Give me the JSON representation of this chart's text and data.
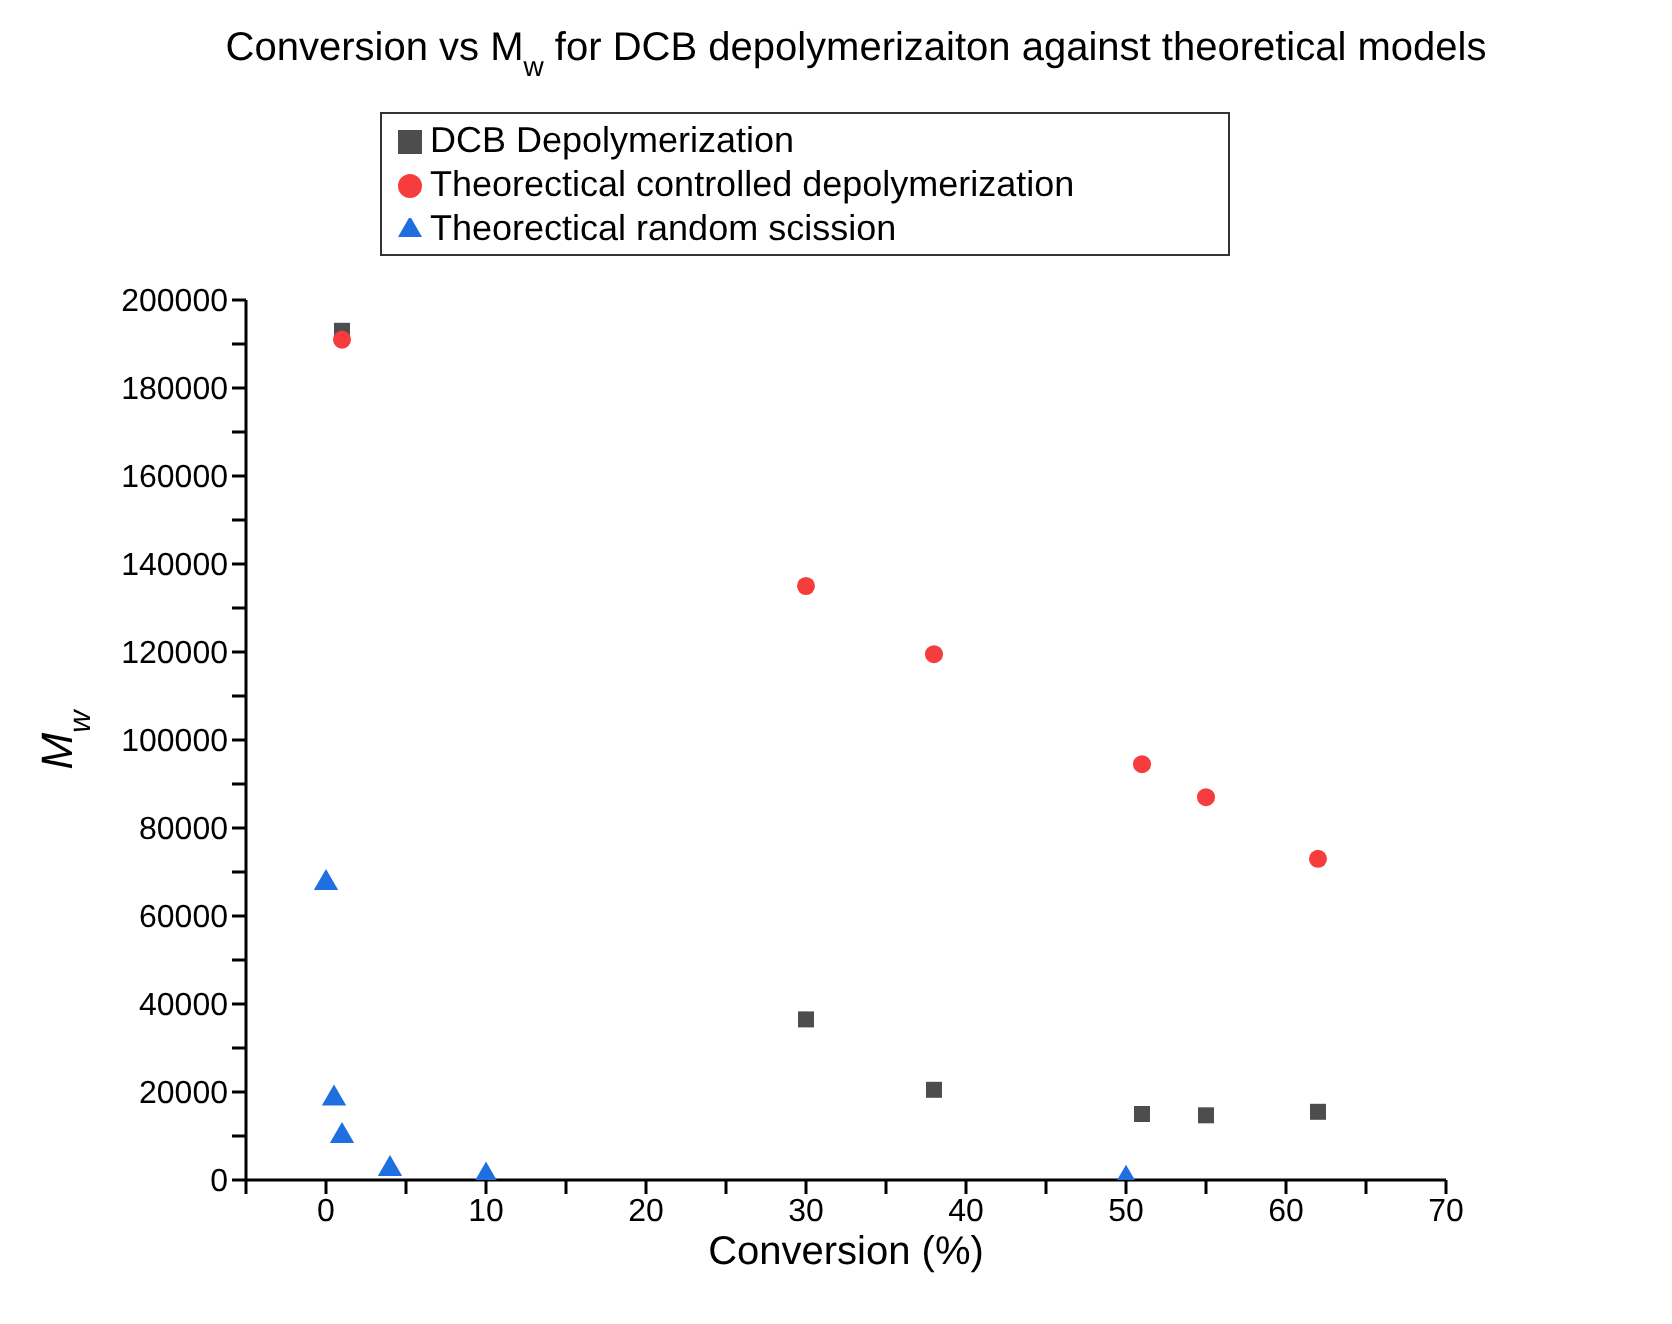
{
  "chart_data": {
    "type": "scatter",
    "title": "Conversion vs M$_{w}$ for DCB depolymerizaiton against theoretical models",
    "xlabel": "Conversion (%)",
    "ylabel": "M$_{w}$",
    "xlim": [
      -5,
      70
    ],
    "xticks": [
      {
        "value": -5,
        "label": null
      },
      0,
      {
        "value": 5,
        "label": null
      },
      10,
      {
        "value": 15,
        "label": null
      },
      20,
      {
        "value": 25,
        "label": null
      },
      30,
      {
        "value": 35,
        "label": null
      },
      40,
      {
        "value": 45,
        "label": null
      },
      50,
      {
        "value": 55,
        "label": null
      },
      60,
      {
        "value": 65,
        "label": null
      },
      70
    ],
    "ylim": [
      0,
      200000
    ],
    "yticks": [
      0,
      {
        "value": 10000,
        "label": null
      },
      20000,
      {
        "value": 30000,
        "label": null
      },
      40000,
      {
        "value": 50000,
        "label": null
      },
      60000,
      {
        "value": 70000,
        "label": null
      },
      80000,
      {
        "value": 90000,
        "label": null
      },
      100000,
      {
        "value": 110000,
        "label": null
      },
      120000,
      {
        "value": 130000,
        "label": null
      },
      140000,
      {
        "value": 150000,
        "label": null
      },
      160000,
      {
        "value": 170000,
        "label": null
      },
      180000,
      {
        "value": 190000,
        "label": null
      },
      200000
    ],
    "grid": false,
    "legend": "top",
    "series": [
      {
        "name": "DCB Depolymerization",
        "color": "#4d4d4d",
        "marker": "square",
        "x": [
          1,
          30,
          38,
          51,
          55,
          62
        ],
        "values": [
          193000,
          36500,
          20500,
          15000,
          14700,
          15500
        ]
      },
      {
        "name": "Theorectical controlled depolymerization",
        "color": "#f53d3d",
        "marker": "circle",
        "x": [
          1,
          30,
          38,
          51,
          55,
          62
        ],
        "values": [
          191000,
          135000,
          119500,
          94500,
          87000,
          73000
        ]
      },
      {
        "name": "Theorectical random scission",
        "color": "#1f6fe0",
        "marker": "triangle",
        "x": [
          0,
          0.5,
          1,
          4,
          10,
          50
        ],
        "values": [
          67500,
          18500,
          10000,
          2500,
          1000,
          300
        ]
      }
    ]
  }
}
